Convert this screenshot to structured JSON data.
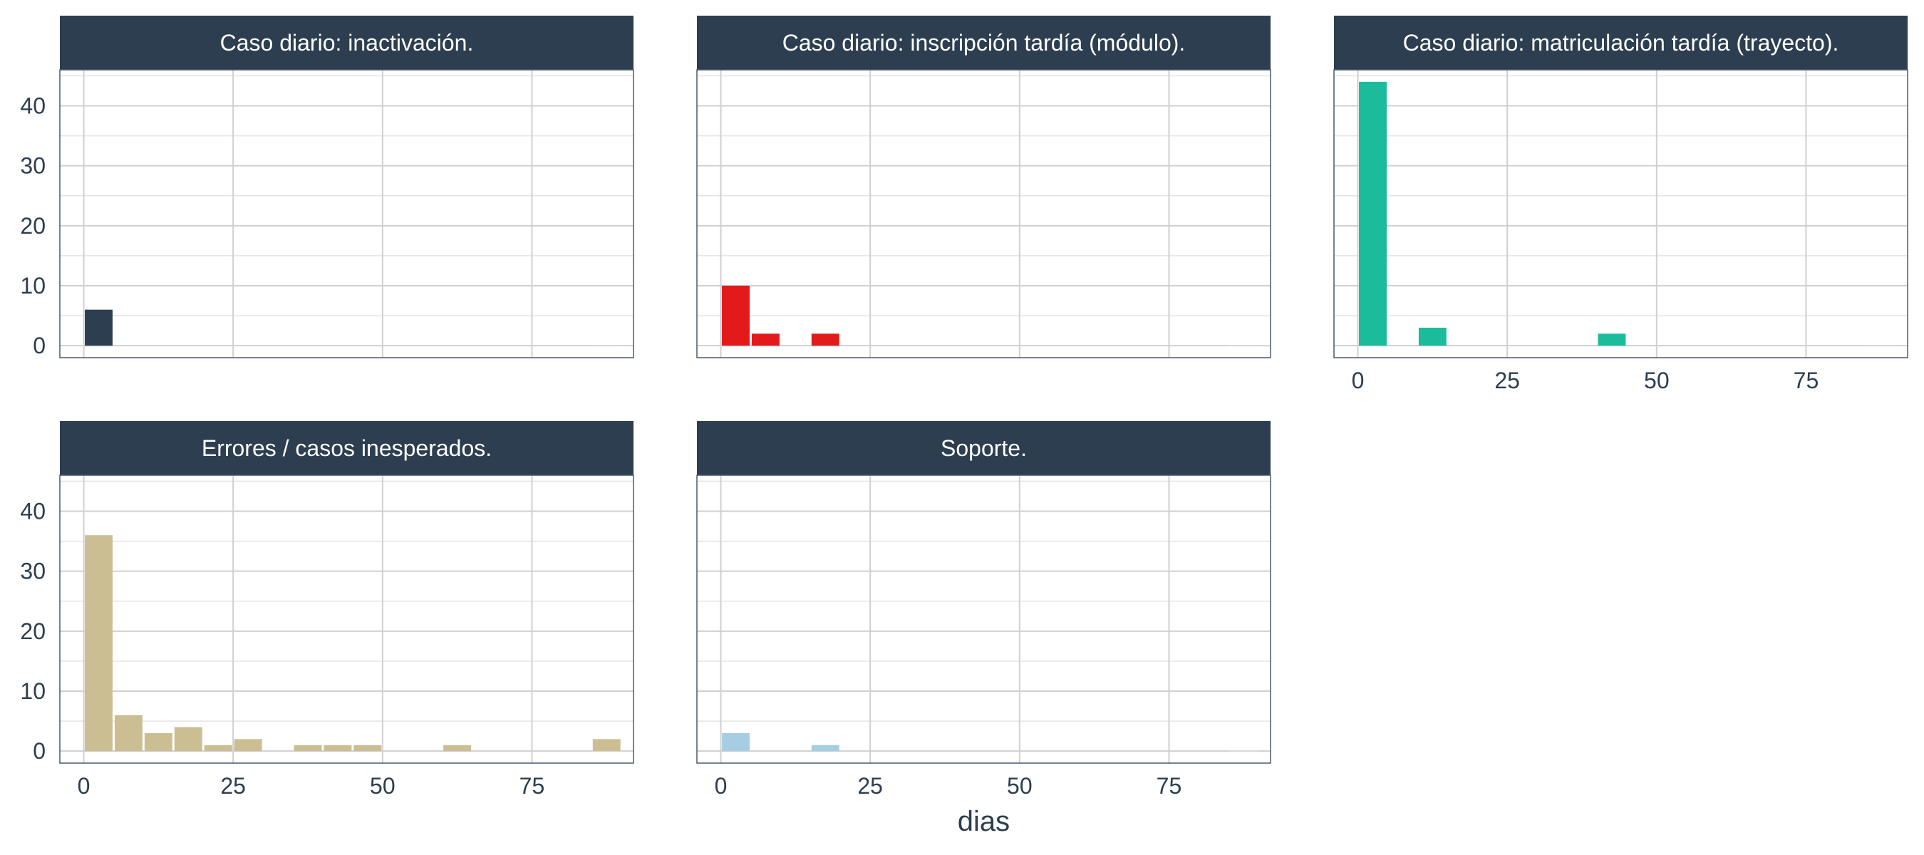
{
  "chart_data": {
    "type": "bar",
    "xlabel": "dias",
    "ylabel": "",
    "xlim": [
      -4,
      92
    ],
    "ylim": [
      -2,
      46
    ],
    "x_ticks": [
      0,
      25,
      50,
      75
    ],
    "y_ticks": [
      0,
      10,
      20,
      30,
      40
    ],
    "bin_width": 5,
    "grid": true,
    "legend": "none",
    "panels": [
      {
        "title": "Caso diario: inactivación.",
        "color": "#2c3e50",
        "bins": [
          {
            "x": 2.5,
            "count": 6
          }
        ]
      },
      {
        "title": "Caso diario: inscripción tardía (módulo).",
        "color": "#e31a1c",
        "bins": [
          {
            "x": 2.5,
            "count": 10
          },
          {
            "x": 7.5,
            "count": 2
          },
          {
            "x": 17.5,
            "count": 2
          }
        ]
      },
      {
        "title": "Caso diario: matriculación tardía (trayecto).",
        "color": "#1abc9c",
        "bins": [
          {
            "x": 2.5,
            "count": 44
          },
          {
            "x": 12.5,
            "count": 3
          },
          {
            "x": 42.5,
            "count": 2
          }
        ]
      },
      {
        "title": "Errores / casos inesperados.",
        "color": "#ccbe93",
        "bins": [
          {
            "x": 2.5,
            "count": 36
          },
          {
            "x": 7.5,
            "count": 6
          },
          {
            "x": 12.5,
            "count": 3
          },
          {
            "x": 17.5,
            "count": 4
          },
          {
            "x": 22.5,
            "count": 1
          },
          {
            "x": 27.5,
            "count": 2
          },
          {
            "x": 37.5,
            "count": 1
          },
          {
            "x": 42.5,
            "count": 1
          },
          {
            "x": 47.5,
            "count": 1
          },
          {
            "x": 62.5,
            "count": 1
          },
          {
            "x": 87.5,
            "count": 2
          }
        ]
      },
      {
        "title": "Soporte.",
        "color": "#a6cee3",
        "bins": [
          {
            "x": 2.5,
            "count": 3
          },
          {
            "x": 17.5,
            "count": 1
          }
        ]
      }
    ]
  }
}
